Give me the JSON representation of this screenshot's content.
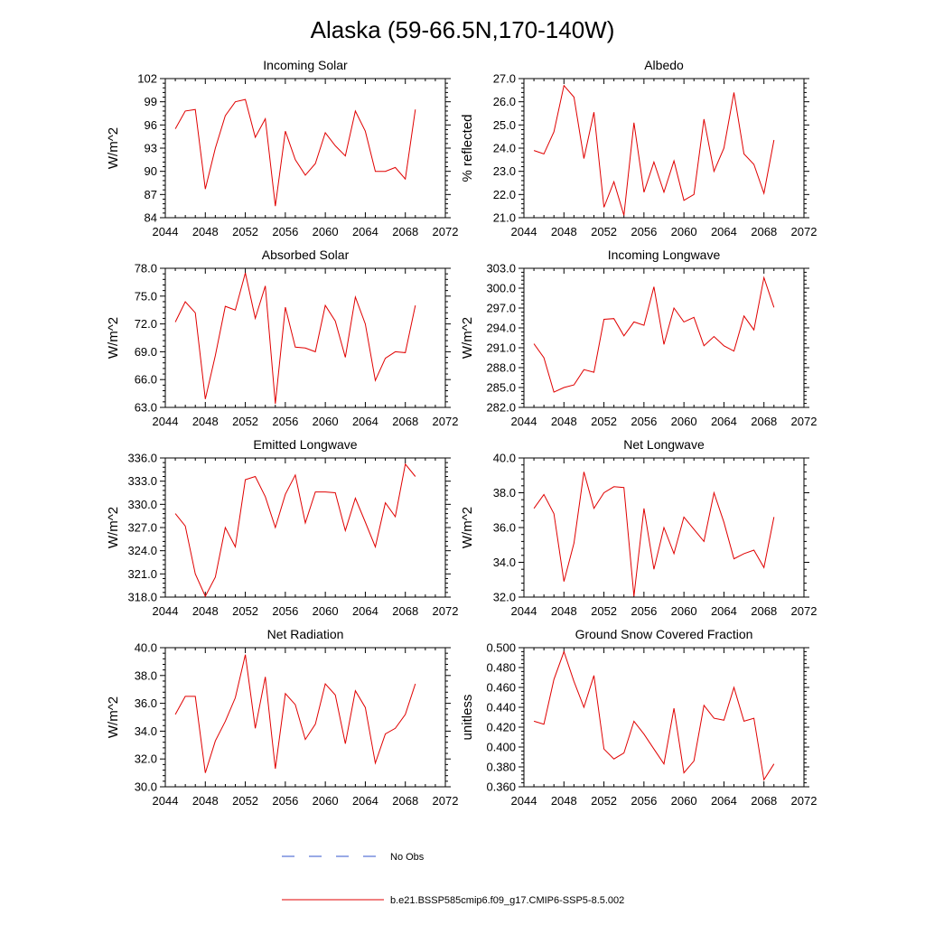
{
  "title": "Alaska (59-66.5N,170-140W)",
  "x_ticks": [
    "2044",
    "2048",
    "2052",
    "2056",
    "2060",
    "2064",
    "2068",
    "2072"
  ],
  "x_range": [
    2044,
    2072
  ],
  "years": [
    2045,
    2046,
    2047,
    2048,
    2049,
    2050,
    2051,
    2052,
    2053,
    2054,
    2055,
    2056,
    2057,
    2058,
    2059,
    2060,
    2061,
    2062,
    2063,
    2064,
    2065,
    2066,
    2067,
    2068,
    2069
  ],
  "legend": {
    "obs_label": "No Obs",
    "model_label": "b.e21.BSSP585cmip6.f09_g17.CMIP6-SSP5-8.5.002",
    "obs_color": "#3355cc",
    "model_color": "#e00000"
  },
  "chart_data": [
    {
      "type": "line",
      "title": "Incoming Solar",
      "ylabel": "W/m^2",
      "ylim": [
        84,
        102
      ],
      "yticks": [
        "84",
        "87",
        "90",
        "93",
        "96",
        "99",
        "102"
      ],
      "values": [
        95.5,
        97.8,
        98.0,
        87.7,
        93.0,
        97.2,
        99.0,
        99.3,
        94.4,
        96.8,
        85.5,
        95.2,
        91.5,
        89.5,
        91.0,
        95.0,
        93.3,
        92.0,
        97.8,
        95.2,
        90.0,
        90.0,
        90.5,
        89.0,
        98.0
      ]
    },
    {
      "type": "line",
      "title": "Albedo",
      "ylabel": "% reflected",
      "ylim": [
        21.0,
        27.0
      ],
      "yticks": [
        "21.0",
        "22.0",
        "23.0",
        "24.0",
        "25.0",
        "26.0",
        "27.0"
      ],
      "values": [
        23.9,
        23.75,
        24.7,
        26.7,
        26.2,
        23.55,
        25.55,
        21.45,
        22.55,
        21.1,
        25.1,
        22.1,
        23.4,
        22.1,
        23.45,
        21.75,
        22.0,
        25.25,
        23.0,
        24.0,
        26.4,
        23.75,
        23.3,
        22.05,
        24.35
      ]
    },
    {
      "type": "line",
      "title": "Absorbed Solar",
      "ylabel": "W/m^2",
      "ylim": [
        63.0,
        78.0
      ],
      "yticks": [
        "63.0",
        "66.0",
        "69.0",
        "72.0",
        "75.0",
        "78.0"
      ],
      "values": [
        72.2,
        74.4,
        73.2,
        63.9,
        68.6,
        73.9,
        73.5,
        77.5,
        72.6,
        76.1,
        63.4,
        73.8,
        69.5,
        69.4,
        69.0,
        74.0,
        72.3,
        68.4,
        74.9,
        72.0,
        65.9,
        68.3,
        69.0,
        68.9,
        74.0
      ]
    },
    {
      "type": "line",
      "title": "Incoming Longwave",
      "ylabel": "W/m^2",
      "ylim": [
        282.0,
        303.0
      ],
      "yticks": [
        "282.0",
        "285.0",
        "288.0",
        "291.0",
        "294.0",
        "297.0",
        "300.0",
        "303.0"
      ],
      "values": [
        291.6,
        289.5,
        284.3,
        285.0,
        285.4,
        287.7,
        287.3,
        295.3,
        295.4,
        292.8,
        294.9,
        294.4,
        300.2,
        291.5,
        297.0,
        294.9,
        295.6,
        291.3,
        292.7,
        291.3,
        290.5,
        295.8,
        293.7,
        301.6,
        297.1
      ]
    },
    {
      "type": "line",
      "title": "Emitted Longwave",
      "ylabel": "W/m^2",
      "ylim": [
        318.0,
        336.0
      ],
      "yticks": [
        "318.0",
        "321.0",
        "324.0",
        "327.0",
        "330.0",
        "333.0",
        "336.0"
      ],
      "values": [
        328.8,
        327.2,
        321.0,
        318.1,
        320.6,
        327.0,
        324.5,
        333.2,
        333.6,
        331.0,
        327.0,
        331.3,
        333.8,
        327.6,
        331.6,
        331.6,
        331.5,
        326.6,
        330.8,
        327.7,
        324.5,
        330.2,
        328.4,
        335.2,
        333.6
      ]
    },
    {
      "type": "line",
      "title": "Net Longwave",
      "ylabel": "W/m^2",
      "ylim": [
        32.0,
        40.0
      ],
      "yticks": [
        "32.0",
        "34.0",
        "36.0",
        "38.0",
        "40.0"
      ],
      "values": [
        37.1,
        37.9,
        36.8,
        32.9,
        35.1,
        39.2,
        37.1,
        38.0,
        38.35,
        38.3,
        32.05,
        37.1,
        33.6,
        36.0,
        34.5,
        36.6,
        35.9,
        35.2,
        38.0,
        36.3,
        34.2,
        34.5,
        34.7,
        33.7,
        36.6
      ]
    },
    {
      "type": "line",
      "title": "Net Radiation",
      "ylabel": "W/m^2",
      "ylim": [
        30.0,
        40.0
      ],
      "yticks": [
        "30.0",
        "32.0",
        "34.0",
        "36.0",
        "38.0",
        "40.0"
      ],
      "values": [
        35.2,
        36.5,
        36.5,
        31.0,
        33.3,
        34.7,
        36.4,
        39.5,
        34.2,
        37.9,
        31.3,
        36.7,
        35.9,
        33.4,
        34.5,
        37.4,
        36.6,
        33.1,
        36.9,
        35.7,
        31.7,
        33.8,
        34.2,
        35.2,
        37.4
      ]
    },
    {
      "type": "line",
      "title": "Ground Snow Covered Fraction",
      "ylabel": "unitless",
      "ylim": [
        0.36,
        0.5
      ],
      "yticks": [
        "0.360",
        "0.380",
        "0.400",
        "0.420",
        "0.440",
        "0.460",
        "0.480",
        "0.500"
      ],
      "values": [
        0.426,
        0.423,
        0.468,
        0.496,
        0.466,
        0.44,
        0.472,
        0.398,
        0.388,
        0.394,
        0.426,
        0.413,
        0.398,
        0.383,
        0.439,
        0.374,
        0.386,
        0.442,
        0.429,
        0.427,
        0.46,
        0.426,
        0.429,
        0.367,
        0.383
      ]
    }
  ]
}
